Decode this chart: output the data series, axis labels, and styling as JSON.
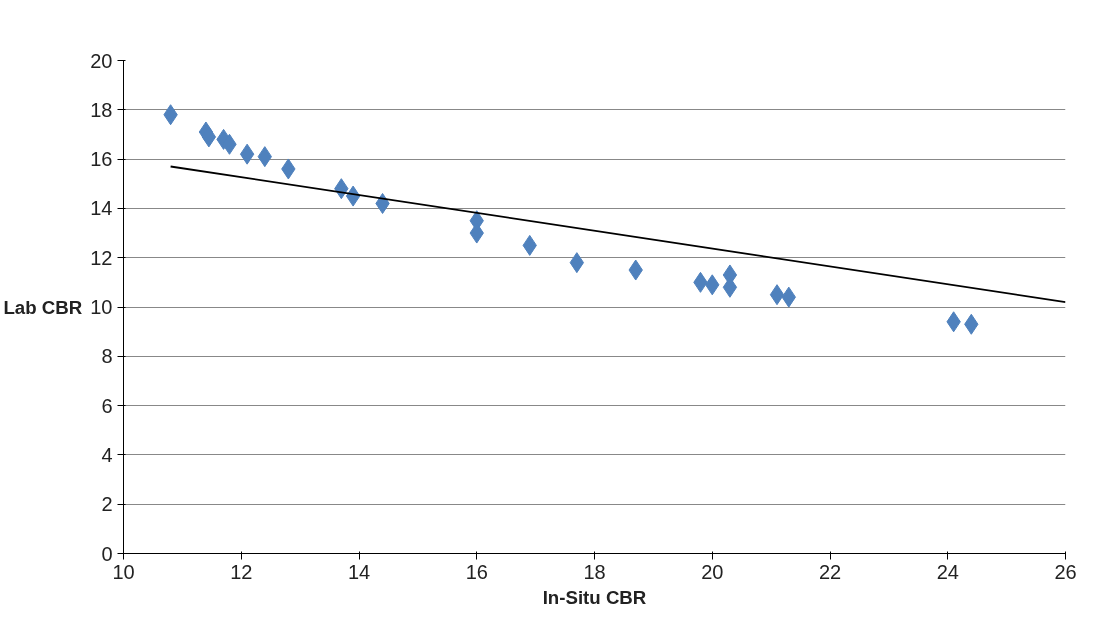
{
  "chart_data": {
    "type": "scatter",
    "xlabel": "In-Situ CBR",
    "ylabel": "Lab CBR",
    "xlim": [
      10,
      26
    ],
    "ylim": [
      0,
      20
    ],
    "xticks": [
      10,
      12,
      14,
      16,
      18,
      20,
      22,
      24,
      26
    ],
    "yticks": [
      0,
      2,
      4,
      6,
      8,
      10,
      12,
      14,
      16,
      18,
      20
    ],
    "grid": "y",
    "marker": "diamond",
    "series": [
      {
        "color": "#4f81bd",
        "x": [
          10.8,
          11.4,
          11.45,
          11.7,
          11.8,
          12.1,
          12.4,
          12.8,
          13.7,
          13.9,
          14.4,
          16.0,
          16.0,
          16.9,
          17.7,
          18.7,
          19.8,
          20.0,
          20.3,
          20.3,
          21.1,
          21.3,
          24.1,
          24.4
        ],
        "values": [
          17.8,
          17.1,
          16.9,
          16.8,
          16.6,
          16.2,
          16.1,
          15.6,
          14.8,
          14.5,
          14.2,
          13.5,
          13.0,
          12.5,
          11.8,
          11.5,
          11.0,
          10.9,
          11.3,
          10.8,
          10.5,
          10.4,
          9.4,
          9.3
        ]
      },
      {
        "type": "line",
        "marker": "none",
        "color": "#000000",
        "x": [
          10.8,
          26
        ],
        "values": [
          15.7,
          10.2
        ]
      }
    ]
  }
}
